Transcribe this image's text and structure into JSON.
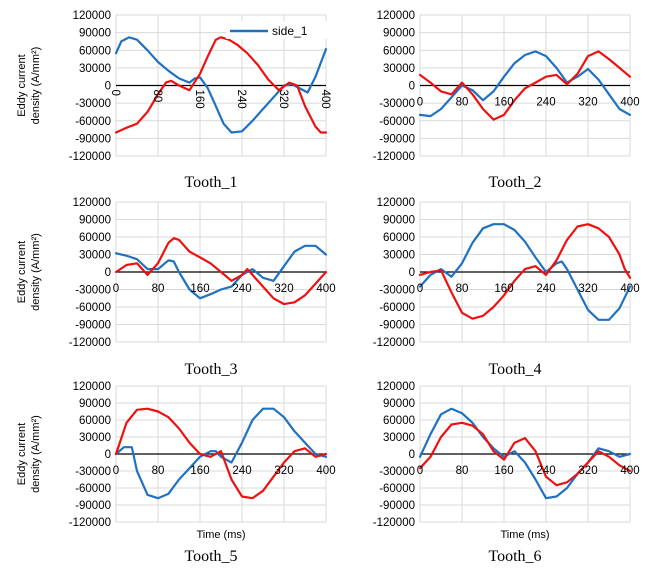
{
  "legend_label": "side_1",
  "colors": {
    "blue": "#1f72c0",
    "red": "#ee1111",
    "grid": "#d9d9d9",
    "axis": "#000000"
  },
  "chart_data": [
    {
      "type": "line",
      "title": "Tooth_1",
      "ylabel": "Eddy current density (A/mm²)",
      "xlabel": "",
      "xlim": [
        0,
        400
      ],
      "ylim": [
        -120000,
        120000
      ],
      "xticks": [
        0,
        80,
        160,
        240,
        320,
        400
      ],
      "yticks": [
        120000,
        90000,
        60000,
        30000,
        0,
        -30000,
        -60000,
        -90000,
        -120000
      ],
      "xtick_rotated": true,
      "legend": "top-right",
      "series": [
        {
          "name": "side_1",
          "color": "blue",
          "x": [
            0,
            10,
            25,
            40,
            60,
            80,
            100,
            120,
            140,
            150,
            160,
            175,
            190,
            205,
            220,
            240,
            260,
            280,
            300,
            320,
            335,
            350,
            365,
            380,
            400
          ],
          "y": [
            55000,
            75000,
            82000,
            78000,
            60000,
            40000,
            25000,
            12000,
            5000,
            12000,
            14000,
            -5000,
            -35000,
            -65000,
            -80000,
            -78000,
            -60000,
            -40000,
            -20000,
            0,
            2000,
            -5000,
            -12000,
            15000,
            62000
          ]
        },
        {
          "color": "red",
          "x": [
            0,
            20,
            40,
            60,
            80,
            95,
            105,
            120,
            140,
            160,
            175,
            190,
            200,
            215,
            230,
            250,
            270,
            290,
            310,
            330,
            345,
            360,
            380,
            390,
            400
          ],
          "y": [
            -80000,
            -72000,
            -65000,
            -45000,
            -15000,
            5000,
            8000,
            0,
            -8000,
            20000,
            50000,
            78000,
            82000,
            78000,
            70000,
            55000,
            35000,
            10000,
            -8000,
            5000,
            0,
            -35000,
            -70000,
            -80000,
            -80000
          ]
        }
      ]
    },
    {
      "type": "line",
      "title": "Tooth_2",
      "ylabel": "",
      "xlabel": "",
      "xlim": [
        0,
        400
      ],
      "ylim": [
        -120000,
        120000
      ],
      "xticks": [
        0,
        80,
        160,
        240,
        320,
        400
      ],
      "yticks": [
        120000,
        90000,
        60000,
        30000,
        0,
        -30000,
        -60000,
        -90000,
        -120000
      ],
      "xtick_rotated": false,
      "series": [
        {
          "color": "blue",
          "x": [
            0,
            20,
            40,
            60,
            80,
            100,
            120,
            140,
            160,
            180,
            200,
            220,
            240,
            260,
            280,
            300,
            320,
            340,
            360,
            380,
            400
          ],
          "y": [
            -50000,
            -52000,
            -40000,
            -20000,
            0,
            -8000,
            -25000,
            -10000,
            15000,
            38000,
            52000,
            58000,
            50000,
            30000,
            5000,
            15000,
            28000,
            10000,
            -15000,
            -40000,
            -50000
          ]
        },
        {
          "color": "red",
          "x": [
            0,
            20,
            40,
            60,
            80,
            100,
            120,
            140,
            160,
            180,
            200,
            220,
            240,
            260,
            280,
            300,
            320,
            340,
            360,
            380,
            400
          ],
          "y": [
            18000,
            5000,
            -10000,
            -15000,
            5000,
            -15000,
            -40000,
            -58000,
            -50000,
            -25000,
            -5000,
            5000,
            15000,
            18000,
            2000,
            20000,
            50000,
            58000,
            45000,
            30000,
            15000
          ]
        }
      ]
    },
    {
      "type": "line",
      "title": "Tooth_3",
      "ylabel": "Eddy current density (A/mm²)",
      "xlabel": "",
      "xlim": [
        0,
        400
      ],
      "ylim": [
        -120000,
        120000
      ],
      "xticks": [
        0,
        80,
        160,
        240,
        320,
        400
      ],
      "yticks": [
        120000,
        90000,
        60000,
        30000,
        0,
        -30000,
        -60000,
        -90000,
        -120000
      ],
      "xtick_rotated": false,
      "series": [
        {
          "color": "blue",
          "x": [
            0,
            20,
            40,
            60,
            80,
            100,
            110,
            120,
            140,
            160,
            180,
            200,
            220,
            240,
            260,
            280,
            300,
            320,
            340,
            360,
            380,
            400
          ],
          "y": [
            32000,
            28000,
            22000,
            5000,
            5000,
            20000,
            18000,
            0,
            -30000,
            -45000,
            -38000,
            -30000,
            -25000,
            -5000,
            5000,
            -10000,
            -15000,
            10000,
            35000,
            45000,
            45000,
            30000
          ]
        },
        {
          "color": "red",
          "x": [
            0,
            20,
            40,
            60,
            80,
            100,
            110,
            120,
            140,
            160,
            180,
            200,
            220,
            240,
            250,
            260,
            280,
            300,
            320,
            340,
            360,
            380,
            400
          ],
          "y": [
            0,
            12000,
            15000,
            -5000,
            15000,
            50000,
            58000,
            55000,
            35000,
            25000,
            15000,
            0,
            -15000,
            -5000,
            5000,
            -5000,
            -25000,
            -45000,
            -55000,
            -52000,
            -40000,
            -20000,
            0
          ]
        }
      ]
    },
    {
      "type": "line",
      "title": "Tooth_4",
      "ylabel": "",
      "xlabel": "",
      "xlim": [
        0,
        400
      ],
      "ylim": [
        -120000,
        120000
      ],
      "xticks": [
        0,
        80,
        160,
        240,
        320,
        400
      ],
      "yticks": [
        120000,
        90000,
        60000,
        30000,
        0,
        -30000,
        -60000,
        -90000,
        -120000
      ],
      "xtick_rotated": false,
      "series": [
        {
          "color": "blue",
          "x": [
            0,
            20,
            40,
            60,
            80,
            100,
            120,
            140,
            160,
            180,
            200,
            220,
            240,
            260,
            270,
            280,
            300,
            320,
            340,
            360,
            380,
            400
          ],
          "y": [
            -25000,
            -5000,
            5000,
            -8000,
            15000,
            50000,
            75000,
            82000,
            82000,
            72000,
            52000,
            25000,
            0,
            15000,
            18000,
            5000,
            -30000,
            -65000,
            -82000,
            -82000,
            -62000,
            -25000
          ]
        },
        {
          "color": "red",
          "x": [
            0,
            20,
            40,
            60,
            80,
            100,
            120,
            140,
            160,
            180,
            200,
            220,
            240,
            260,
            280,
            300,
            320,
            340,
            360,
            380,
            390,
            400
          ],
          "y": [
            -5000,
            0,
            3000,
            -35000,
            -70000,
            -80000,
            -75000,
            -60000,
            -40000,
            -15000,
            5000,
            10000,
            -5000,
            20000,
            55000,
            78000,
            82000,
            75000,
            60000,
            30000,
            5000,
            -10000
          ]
        }
      ]
    },
    {
      "type": "line",
      "title": "Tooth_5",
      "ylabel": "Eddy current density (A/mm²)",
      "xlabel": "Time (ms)",
      "xlim": [
        0,
        400
      ],
      "ylim": [
        -120000,
        120000
      ],
      "xticks": [
        0,
        80,
        160,
        240,
        320,
        400
      ],
      "yticks": [
        120000,
        90000,
        60000,
        30000,
        0,
        -30000,
        -60000,
        -90000,
        -120000
      ],
      "xtick_rotated": false,
      "series": [
        {
          "color": "blue",
          "x": [
            0,
            15,
            30,
            40,
            60,
            80,
            100,
            120,
            140,
            160,
            180,
            190,
            200,
            220,
            240,
            260,
            280,
            300,
            320,
            340,
            360,
            380,
            400
          ],
          "y": [
            0,
            12000,
            12000,
            -30000,
            -72000,
            -78000,
            -70000,
            -45000,
            -25000,
            -5000,
            5000,
            5000,
            -5000,
            -15000,
            20000,
            60000,
            80000,
            80000,
            65000,
            40000,
            20000,
            0,
            -5000
          ]
        },
        {
          "color": "red",
          "x": [
            0,
            20,
            40,
            60,
            80,
            100,
            120,
            140,
            160,
            180,
            200,
            220,
            240,
            260,
            280,
            300,
            320,
            340,
            360,
            380,
            400
          ],
          "y": [
            0,
            55000,
            78000,
            80000,
            75000,
            65000,
            45000,
            20000,
            0,
            -5000,
            5000,
            -45000,
            -75000,
            -78000,
            -65000,
            -40000,
            -15000,
            5000,
            10000,
            -5000,
            0
          ]
        }
      ]
    },
    {
      "type": "line",
      "title": "Tooth_6",
      "ylabel": "",
      "xlabel": "Time (ms)",
      "xlim": [
        0,
        400
      ],
      "ylim": [
        -120000,
        120000
      ],
      "xticks": [
        0,
        80,
        160,
        240,
        320,
        400
      ],
      "yticks": [
        120000,
        90000,
        60000,
        30000,
        0,
        -30000,
        -60000,
        -90000,
        -120000
      ],
      "xtick_rotated": false,
      "series": [
        {
          "color": "blue",
          "x": [
            0,
            20,
            40,
            60,
            80,
            100,
            120,
            140,
            160,
            180,
            200,
            220,
            240,
            260,
            280,
            300,
            320,
            340,
            360,
            380,
            400
          ],
          "y": [
            -5000,
            35000,
            70000,
            80000,
            72000,
            55000,
            30000,
            10000,
            -5000,
            5000,
            -15000,
            -45000,
            -78000,
            -75000,
            -60000,
            -35000,
            -15000,
            10000,
            5000,
            -5000,
            0
          ]
        },
        {
          "color": "red",
          "x": [
            0,
            20,
            40,
            60,
            80,
            100,
            120,
            140,
            160,
            180,
            200,
            220,
            240,
            260,
            280,
            300,
            320,
            340,
            360,
            380,
            400
          ],
          "y": [
            -25000,
            -5000,
            30000,
            52000,
            55000,
            50000,
            35000,
            5000,
            -10000,
            20000,
            28000,
            5000,
            -40000,
            -55000,
            -50000,
            -35000,
            -15000,
            5000,
            -5000,
            -20000,
            -30000
          ]
        }
      ]
    }
  ]
}
